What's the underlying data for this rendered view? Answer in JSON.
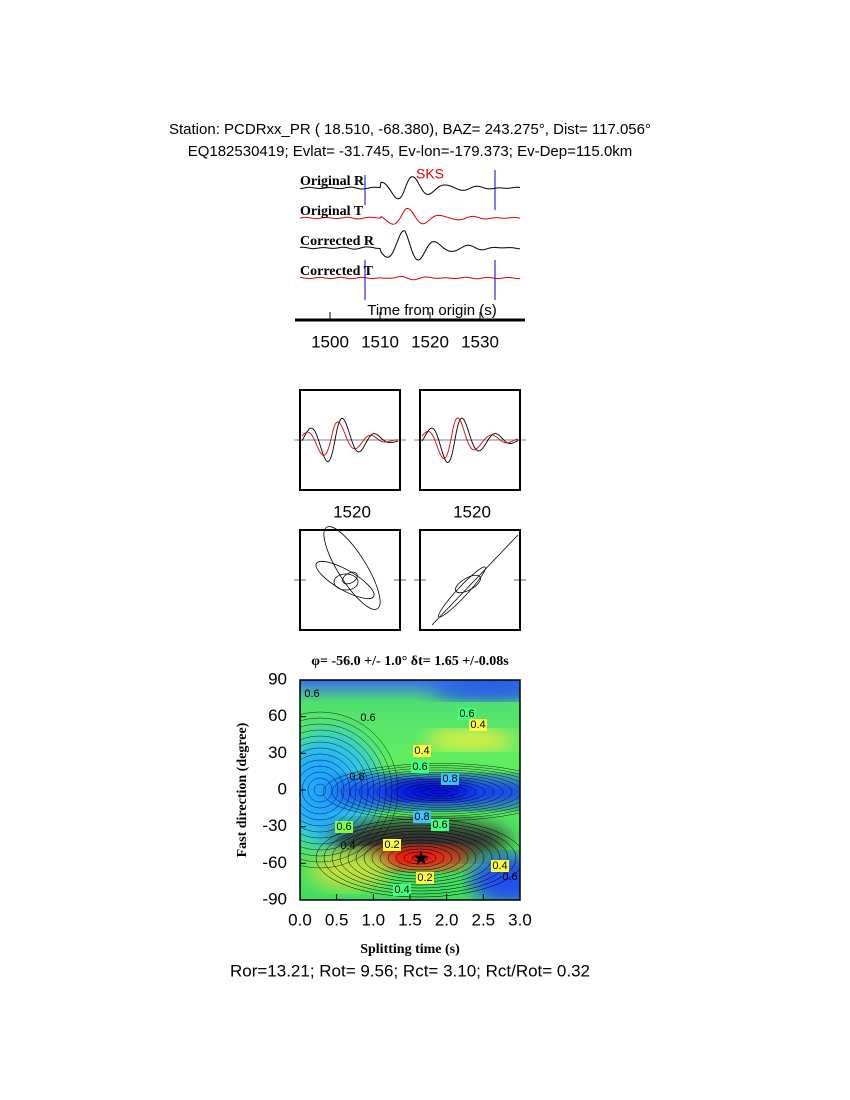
{
  "header": {
    "station_line": "Station: PCDRxx_PR (  18.510,  -68.380), BAZ=  243.275°, Dist=  117.056°",
    "event_line": "EQ182530419; Evlat= -31.745, Ev-lon=-179.373; Ev-Dep=115.0km"
  },
  "chart_data": [
    {
      "type": "seismogram",
      "traces": [
        "Original R",
        "Original T",
        "Corrected R",
        "Corrected T"
      ],
      "phase": "SKS",
      "x_label": "Time from origin (s)",
      "xlim": [
        1494,
        1538
      ],
      "xticks": [
        1500,
        1510,
        1520,
        1530
      ],
      "window": [
        1507,
        1533
      ],
      "zoom_labels": [
        1520,
        1520
      ]
    },
    {
      "type": "contour",
      "title": "φ= -56.0 +/- 1.0° δt= 1.65 +/-0.08s",
      "x_label": "Splitting time (s)",
      "y_label": "Fast direction (degree)",
      "xlim": [
        0,
        3
      ],
      "ylim": [
        -90,
        90
      ],
      "xticks": [
        {
          "value": 0,
          "label": "0.0"
        },
        {
          "value": 0.5,
          "label": "0.5"
        },
        {
          "value": 1,
          "label": "1.0"
        },
        {
          "value": 1.5,
          "label": "1.5"
        },
        {
          "value": 2,
          "label": "2.0"
        },
        {
          "value": 2.5,
          "label": "2.5"
        },
        {
          "value": 3,
          "label": "3.0"
        }
      ],
      "yticks": [
        -90,
        -60,
        -30,
        0,
        30,
        60,
        90
      ],
      "best": {
        "x": 1.65,
        "y": -56
      },
      "contour_labels": [
        0.6,
        0.6,
        0.6,
        0.4,
        0.4,
        0.6,
        0.8,
        0.8,
        0.8,
        0.6,
        0.6,
        0.4,
        0.2,
        0.2,
        0.4,
        0.4,
        0.6
      ]
    }
  ],
  "footer": "Ror=13.21; Rot= 9.56; Rct= 3.10; Rct/Rot= 0.32"
}
